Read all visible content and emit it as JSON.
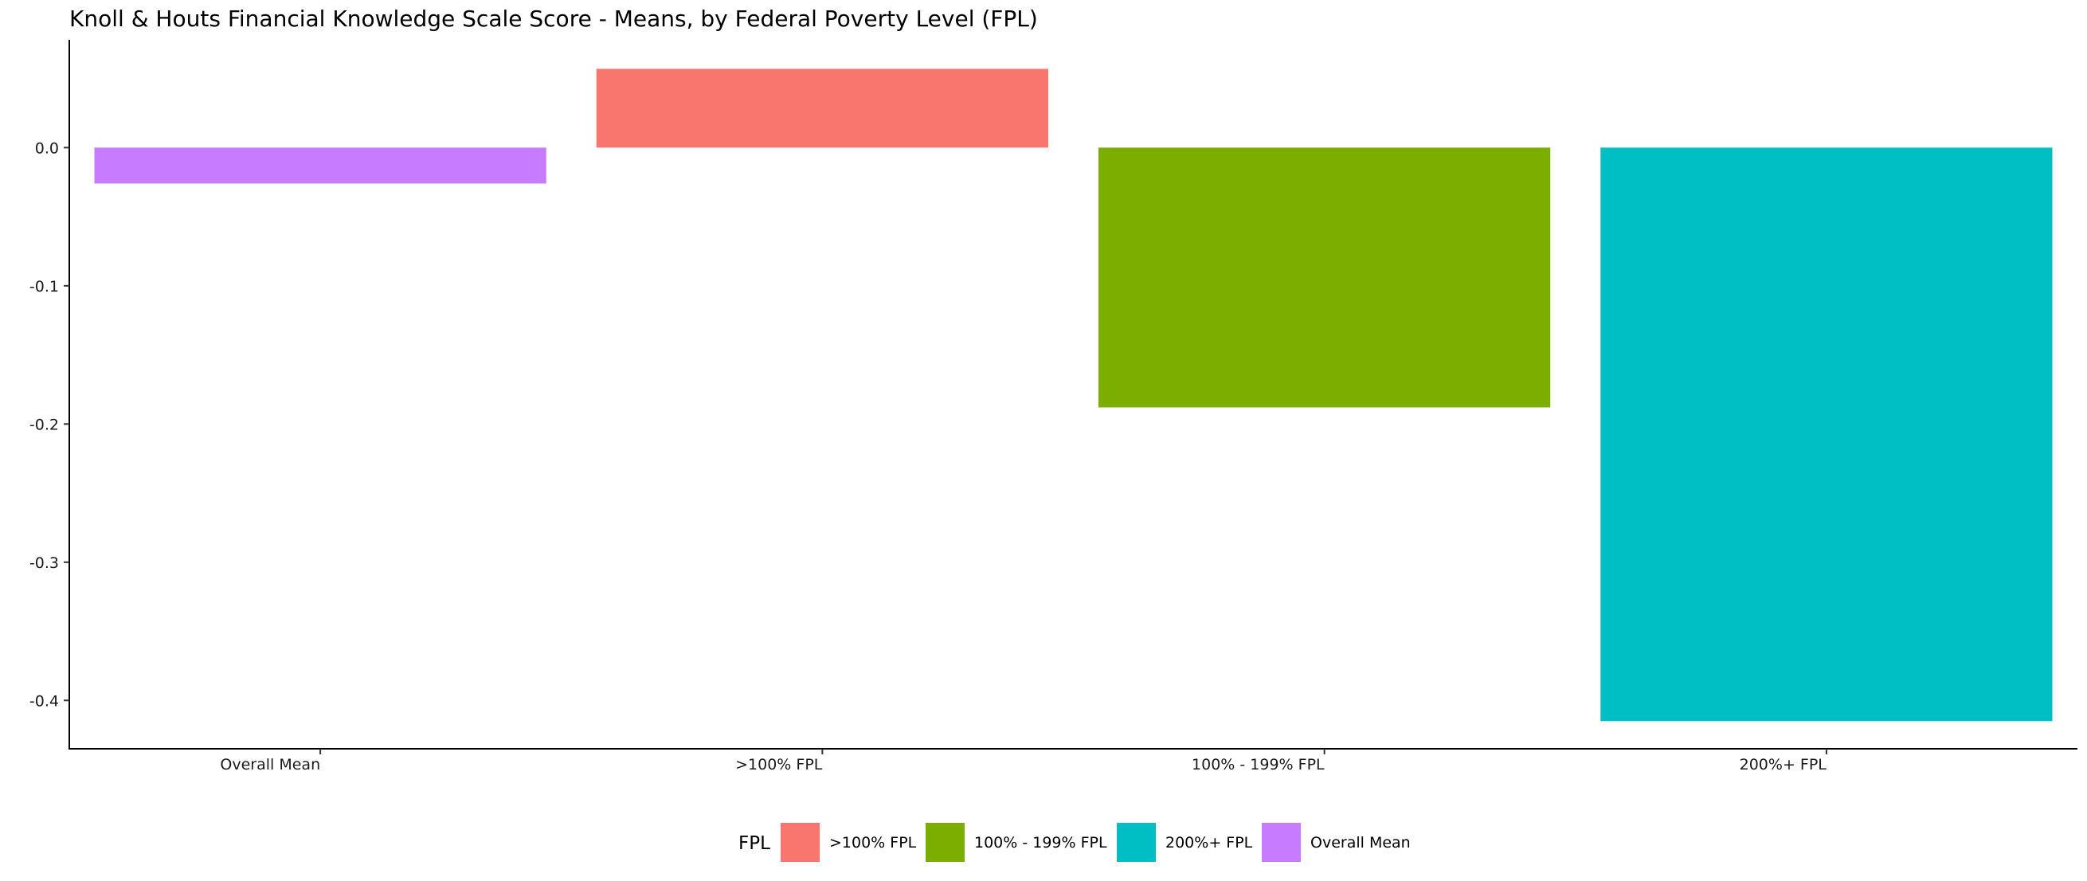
{
  "chart_data": {
    "type": "bar",
    "title": "Knoll & Houts Financial Knowledge Scale Score - Means, by Federal Poverty Level (FPL)",
    "xlabel": "",
    "ylabel": "",
    "categories": [
      "Overall Mean",
      ">100% FPL",
      "100% - 199% FPL",
      "200%+ FPL"
    ],
    "values": [
      -0.026,
      0.057,
      -0.188,
      -0.415
    ],
    "bar_colors": [
      "#C77CFF",
      "#F8766D",
      "#7CAE00",
      "#00BFC4"
    ],
    "ylim": [
      -0.435,
      0.078
    ],
    "yticks": [
      0.0,
      -0.1,
      -0.2,
      -0.3,
      -0.4
    ],
    "ytick_labels": [
      "0.0",
      "-0.1",
      "-0.2",
      "-0.3",
      "-0.4"
    ],
    "grid": false,
    "legend": {
      "title": "FPL",
      "position": "bottom",
      "entries": [
        {
          "label": ">100% FPL",
          "color": "#F8766D"
        },
        {
          "label": "100% - 199% FPL",
          "color": "#7CAE00"
        },
        {
          "label": "200%+ FPL",
          "color": "#00BFC4"
        },
        {
          "label": "Overall Mean",
          "color": "#C77CFF"
        }
      ]
    }
  }
}
